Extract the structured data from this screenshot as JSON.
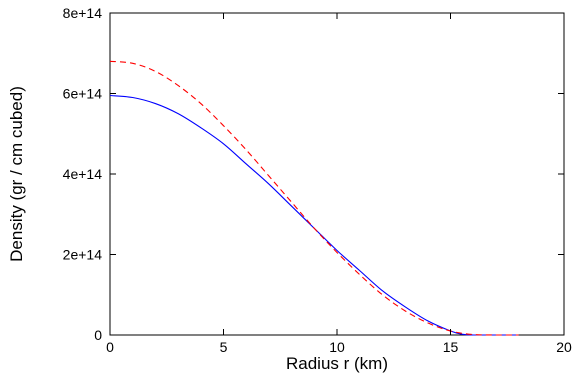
{
  "chart_data": {
    "type": "line",
    "title": "",
    "xlabel": "Radius r   (km)",
    "ylabel": "Density    (gr / cm  cubed)",
    "xlim": [
      0,
      20
    ],
    "ylim": [
      0,
      800000000000000.0
    ],
    "grid": false,
    "legend": "none",
    "x_ticks": [
      0,
      5,
      10,
      15,
      20
    ],
    "x_tick_labels": [
      "0",
      "5",
      "10",
      "15",
      "20"
    ],
    "y_ticks": [
      0,
      200000000000000.0,
      400000000000000.0,
      600000000000000.0,
      800000000000000.0
    ],
    "y_tick_labels": [
      "0",
      "2e+14",
      "4e+14",
      "6e+14",
      "8e+14"
    ],
    "series": [
      {
        "color": "#0000ff",
        "style": "solid",
        "x": [
          0,
          1,
          2,
          3,
          4,
          5,
          6,
          7,
          8,
          9,
          10,
          11,
          12,
          13,
          14,
          15,
          15.5,
          16,
          17,
          18
        ],
        "y": [
          595000000000000.0,
          590000000000000.0,
          575000000000000.0,
          550000000000000.0,
          515000000000000.0,
          475000000000000.0,
          425000000000000.0,
          375000000000000.0,
          320000000000000.0,
          265000000000000.0,
          210000000000000.0,
          160000000000000.0,
          110000000000000.0,
          70000000000000.0,
          35000000000000.0,
          10000000000000.0,
          2000000000000.0,
          0,
          0,
          0
        ]
      },
      {
        "color": "#ff0000",
        "style": "dashed",
        "x": [
          0,
          1,
          2,
          3,
          4,
          5,
          6,
          7,
          8,
          9,
          10,
          11,
          12,
          13,
          14,
          15,
          16,
          17,
          18
        ],
        "y": [
          680000000000000.0,
          675000000000000.0,
          655000000000000.0,
          620000000000000.0,
          575000000000000.0,
          520000000000000.0,
          460000000000000.0,
          395000000000000.0,
          330000000000000.0,
          265000000000000.0,
          205000000000000.0,
          150000000000000.0,
          100000000000000.0,
          60000000000000.0,
          30000000000000.0,
          10000000000000.0,
          1000000000000.0,
          0,
          0
        ]
      }
    ]
  }
}
